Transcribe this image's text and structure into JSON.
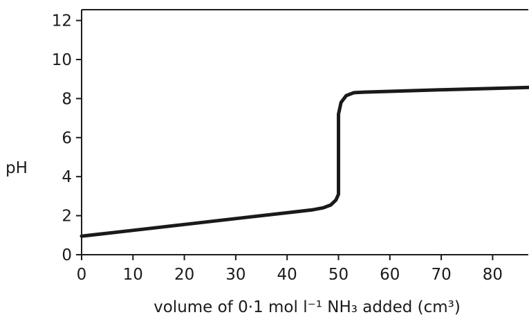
{
  "chart_data": {
    "type": "line",
    "title": "",
    "xlabel": "volume of 0·1 mol l⁻¹ NH₃ added (cm³)",
    "ylabel": "pH",
    "xlim": [
      0,
      87
    ],
    "ylim": [
      0,
      12.6
    ],
    "x_ticks": [
      0,
      10,
      20,
      30,
      40,
      50,
      60,
      70,
      80
    ],
    "y_ticks": [
      0,
      2,
      4,
      6,
      8,
      10,
      12
    ],
    "grid": false,
    "legend": "none",
    "line_color": "#1a1a1a",
    "series": [
      {
        "values": [
          [
            0,
            0.95
          ],
          [
            10,
            1.25
          ],
          [
            20,
            1.55
          ],
          [
            30,
            1.85
          ],
          [
            40,
            2.15
          ],
          [
            45,
            2.3
          ],
          [
            47,
            2.4
          ],
          [
            48.5,
            2.55
          ],
          [
            49.5,
            2.8
          ],
          [
            50,
            3.1
          ],
          [
            50,
            5.0
          ],
          [
            50,
            7.2
          ],
          [
            50.5,
            7.8
          ],
          [
            51.5,
            8.15
          ],
          [
            53,
            8.3
          ],
          [
            55,
            8.33
          ],
          [
            60,
            8.37
          ],
          [
            70,
            8.45
          ],
          [
            80,
            8.52
          ],
          [
            87,
            8.57
          ]
        ]
      }
    ]
  }
}
